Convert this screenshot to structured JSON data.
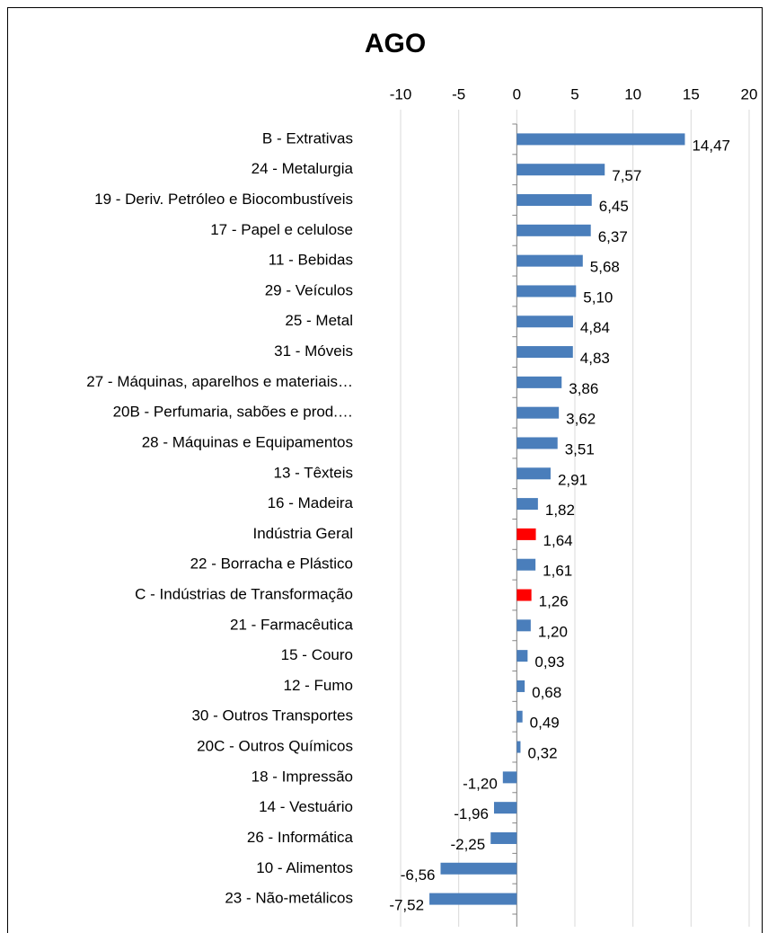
{
  "chart_data": {
    "type": "bar",
    "orientation": "horizontal",
    "title": "AGO",
    "categories": [
      "B - Extrativas",
      "24 - Metalurgia",
      "19 - Deriv. Petróleo e Biocombustíveis",
      "17 - Papel e celulose",
      "11 - Bebidas",
      "29 - Veículos",
      "25 - Metal",
      "31 - Móveis",
      "27 - Máquinas, aparelhos e materiais…",
      "20B - Perfumaria, sabões e prod.…",
      "28 - Máquinas e Equipamentos",
      "13 - Têxteis",
      "16 - Madeira",
      "Indústria Geral",
      "22 - Borracha e Plástico",
      "C - Indústrias de Transformação",
      "21 - Farmacêutica",
      "15 - Couro",
      "12 - Fumo",
      "30 - Outros Transportes",
      "20C - Outros Químicos",
      "18 - Impressão",
      "14 - Vestuário",
      "26 - Informática",
      "10 - Alimentos",
      "23 - Não-metálicos"
    ],
    "values": [
      14.47,
      7.57,
      6.45,
      6.37,
      5.68,
      5.1,
      4.84,
      4.83,
      3.86,
      3.62,
      3.51,
      2.91,
      1.82,
      1.64,
      1.61,
      1.26,
      1.2,
      0.93,
      0.68,
      0.49,
      0.32,
      -1.2,
      -1.96,
      -2.25,
      -6.56,
      -7.52
    ],
    "value_labels": [
      "14,47",
      "7,57",
      "6,45",
      "6,37",
      "5,68",
      "5,10",
      "4,84",
      "4,83",
      "3,86",
      "3,62",
      "3,51",
      "2,91",
      "1,82",
      "1,64",
      "1,61",
      "1,26",
      "1,20",
      "0,93",
      "0,68",
      "0,49",
      "0,32",
      "-1,20",
      "-1,96",
      "-2,25",
      "-6,56",
      "-7,52"
    ],
    "colors": [
      "#4a7ebb",
      "#4a7ebb",
      "#4a7ebb",
      "#4a7ebb",
      "#4a7ebb",
      "#4a7ebb",
      "#4a7ebb",
      "#4a7ebb",
      "#4a7ebb",
      "#4a7ebb",
      "#4a7ebb",
      "#4a7ebb",
      "#4a7ebb",
      "#ff0000",
      "#4a7ebb",
      "#ff0000",
      "#4a7ebb",
      "#4a7ebb",
      "#4a7ebb",
      "#4a7ebb",
      "#4a7ebb",
      "#4a7ebb",
      "#4a7ebb",
      "#4a7ebb",
      "#4a7ebb",
      "#4a7ebb"
    ],
    "xlim": [
      -10,
      20
    ],
    "xticks": [
      -10,
      -5,
      0,
      5,
      10,
      15,
      20
    ],
    "grid": true
  }
}
